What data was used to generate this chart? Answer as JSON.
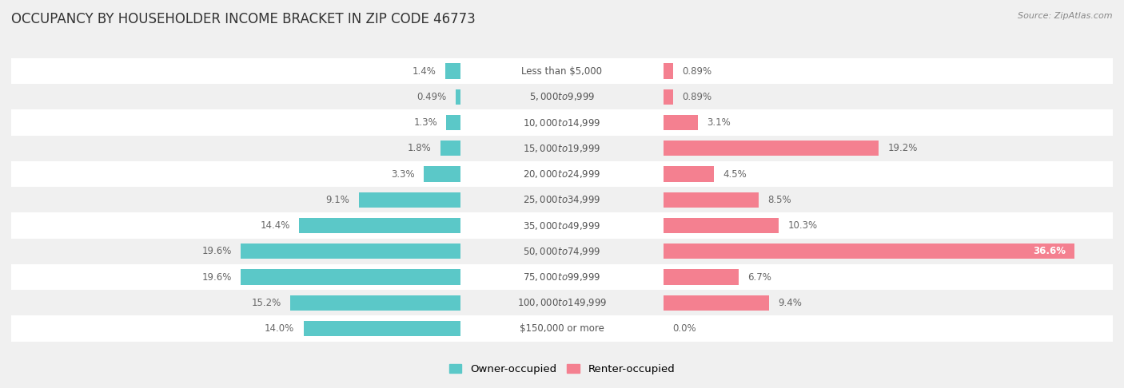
{
  "title": "OCCUPANCY BY HOUSEHOLDER INCOME BRACKET IN ZIP CODE 46773",
  "source": "Source: ZipAtlas.com",
  "categories": [
    "Less than $5,000",
    "$5,000 to $9,999",
    "$10,000 to $14,999",
    "$15,000 to $19,999",
    "$20,000 to $24,999",
    "$25,000 to $34,999",
    "$35,000 to $49,999",
    "$50,000 to $74,999",
    "$75,000 to $99,999",
    "$100,000 to $149,999",
    "$150,000 or more"
  ],
  "owner_values": [
    1.4,
    0.49,
    1.3,
    1.8,
    3.3,
    9.1,
    14.4,
    19.6,
    19.6,
    15.2,
    14.0
  ],
  "renter_values": [
    0.89,
    0.89,
    3.1,
    19.2,
    4.5,
    8.5,
    10.3,
    36.6,
    6.7,
    9.4,
    0.0
  ],
  "owner_color": "#5BC8C8",
  "renter_color": "#F48090",
  "bar_height": 0.6,
  "xlim": 40.0,
  "background_color": "#f0f0f0",
  "row_bg_odd": "#f0f0f0",
  "row_bg_even": "#ffffff",
  "title_fontsize": 12,
  "source_fontsize": 8,
  "axis_fontsize": 9.5,
  "label_fontsize": 8.5,
  "category_fontsize": 8.5,
  "legend_fontsize": 9.5
}
